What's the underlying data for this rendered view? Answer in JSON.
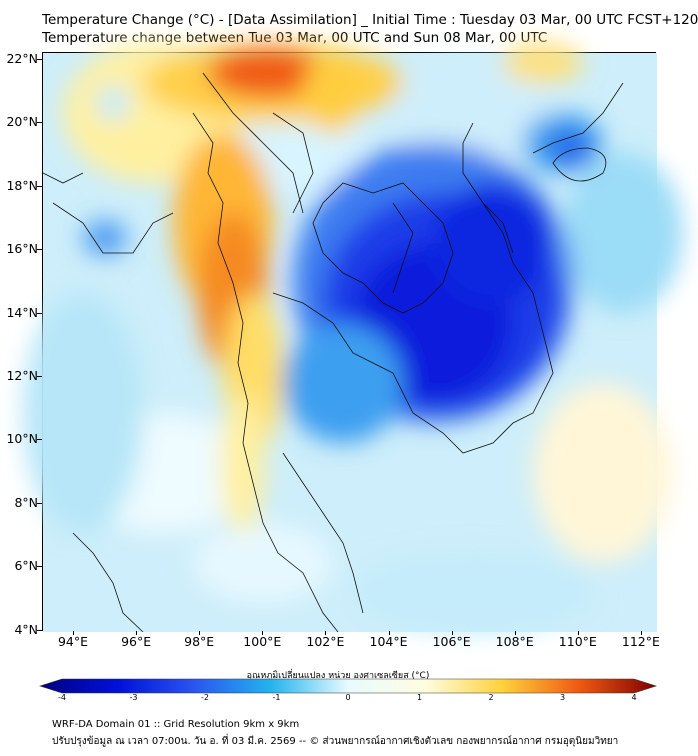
{
  "title_line1": "Temperature Change (°C) - [Data Assimilation] _ Initial Time : Tuesday 03 Mar, 00 UTC FCST+120",
  "title_line2": "Temperature change between Tue 03 Mar, 00 UTC and Sun 08 Mar, 00 UTC",
  "lat_ticks": [
    "22°N",
    "20°N",
    "18°N",
    "16°N",
    "14°N",
    "12°N",
    "10°N",
    "8°N",
    "6°N",
    "4°N"
  ],
  "lon_ticks": [
    "94°E",
    "96°E",
    "98°E",
    "100°E",
    "102°E",
    "104°E",
    "106°E",
    "108°E",
    "110°E",
    "112°E"
  ],
  "colorbar": {
    "label": "อุณหภูมิเปลี่ยนแปลง หน่วย องศาเซลเซียส (°C)",
    "ticks": [
      "-4",
      "-3",
      "-2",
      "-1",
      "0",
      "1",
      "2",
      "3",
      "4"
    ],
    "colors": [
      "#00007f",
      "#0010d8",
      "#2a55f0",
      "#22b4ee",
      "#e8fbff",
      "#fffde0",
      "#ffd23a",
      "#f05a10",
      "#7f0000"
    ]
  },
  "footer_line1": "WRF-DA Domain 01 :: Grid Resolution 9km x 9km",
  "footer_line2": "ปรับปรุงข้อมูล ณ เวลา 07:00น. วัน อ. ที่ 03 มี.ค. 2569 -- © ส่วนพยากรณ์อากาศเชิงตัวเลข กองพยากรณ์อากาศ กรมอุตุนิยมวิทยา"
}
